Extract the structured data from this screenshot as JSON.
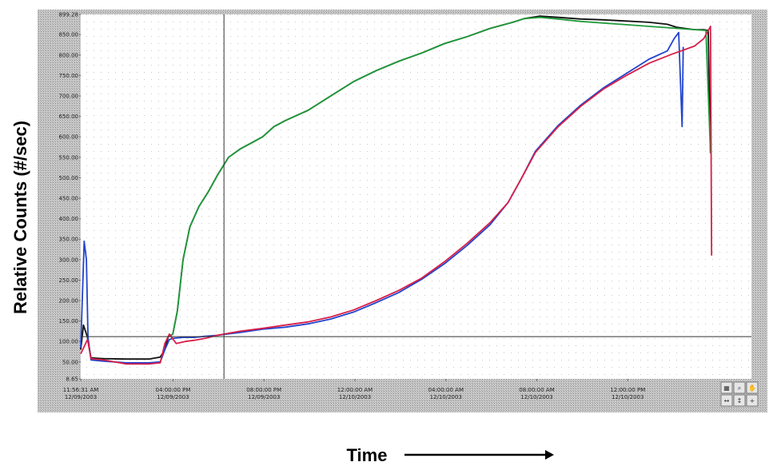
{
  "chart_data": {
    "type": "line",
    "ylabel": "Relative Counts (#/sec)",
    "xlabel": "Time",
    "y_axis": {
      "range": [
        8.65,
        899.28
      ],
      "ticks": [
        {
          "value": 8.65,
          "label": "8.65"
        },
        {
          "value": 50,
          "label": "50.00"
        },
        {
          "value": 100,
          "label": "100.00"
        },
        {
          "value": 150,
          "label": "150.00"
        },
        {
          "value": 200,
          "label": "200.00"
        },
        {
          "value": 250,
          "label": "250.00"
        },
        {
          "value": 300,
          "label": "300.00"
        },
        {
          "value": 350,
          "label": "350.00"
        },
        {
          "value": 400,
          "label": "400.00"
        },
        {
          "value": 450,
          "label": "450.00"
        },
        {
          "value": 500,
          "label": "500.00"
        },
        {
          "value": 550,
          "label": "550.00"
        },
        {
          "value": 600,
          "label": "600.00"
        },
        {
          "value": 650,
          "label": "650.00"
        },
        {
          "value": 700,
          "label": "700.00"
        },
        {
          "value": 750,
          "label": "750.00"
        },
        {
          "value": 800,
          "label": "800.00"
        },
        {
          "value": 850,
          "label": "850.00"
        },
        {
          "value": 899.28,
          "label": "899.28"
        }
      ]
    },
    "x_axis": {
      "unit": "hours since 11:56:31 AM 12/09/2003",
      "range": [
        0,
        29.5
      ],
      "ticks": [
        {
          "value": 0,
          "label": "11:56:31 AM",
          "sub": "12/09/2003"
        },
        {
          "value": 4.06,
          "label": "04:00:00 PM",
          "sub": "12/09/2003"
        },
        {
          "value": 8.06,
          "label": "08:00:00 PM",
          "sub": "12/09/2003"
        },
        {
          "value": 12.06,
          "label": "12:00:00 AM",
          "sub": "12/10/2003"
        },
        {
          "value": 16.06,
          "label": "04:00:00 AM",
          "sub": "12/10/2003"
        },
        {
          "value": 20.06,
          "label": "08:00:00 AM",
          "sub": "12/10/2003"
        },
        {
          "value": 24.06,
          "label": "12:00:00 PM",
          "sub": "12/10/2003"
        }
      ]
    },
    "cursor": {
      "x": 6.3,
      "y": 112
    },
    "grid": true,
    "series": [
      {
        "color": "#111111",
        "points": [
          [
            0,
            80
          ],
          [
            0.12,
            140
          ],
          [
            0.3,
            110
          ],
          [
            0.45,
            60
          ],
          [
            1,
            58
          ],
          [
            2,
            57
          ],
          [
            3,
            57
          ],
          [
            3.5,
            62
          ],
          [
            3.7,
            80
          ],
          [
            3.85,
            112
          ],
          [
            4.05,
            118
          ],
          [
            4.25,
            175
          ],
          [
            4.5,
            300
          ],
          [
            4.8,
            380
          ],
          [
            5.2,
            430
          ],
          [
            5.6,
            465
          ],
          [
            6,
            505
          ],
          [
            6.5,
            550
          ],
          [
            7,
            570
          ],
          [
            7.5,
            585
          ],
          [
            8,
            600
          ],
          [
            8.5,
            625
          ],
          [
            9,
            640
          ],
          [
            10,
            665
          ],
          [
            11,
            700
          ],
          [
            12,
            735
          ],
          [
            13,
            762
          ],
          [
            14,
            785
          ],
          [
            15,
            805
          ],
          [
            16,
            828
          ],
          [
            17,
            845
          ],
          [
            18,
            865
          ],
          [
            19,
            880
          ],
          [
            19.5,
            889
          ],
          [
            20.2,
            895
          ],
          [
            21,
            892
          ],
          [
            22,
            888
          ],
          [
            23,
            886
          ],
          [
            24,
            883
          ],
          [
            25,
            880
          ],
          [
            25.8,
            875
          ],
          [
            26.2,
            868
          ],
          [
            26.6,
            865
          ],
          [
            27,
            862
          ],
          [
            27.4,
            862
          ],
          [
            27.6,
            860
          ],
          [
            27.7,
            560
          ]
        ]
      },
      {
        "color": "#1f9a3a",
        "points": [
          [
            3.85,
            112
          ],
          [
            4.05,
            118
          ],
          [
            4.25,
            175
          ],
          [
            4.5,
            300
          ],
          [
            4.8,
            380
          ],
          [
            5.2,
            430
          ],
          [
            5.6,
            465
          ],
          [
            6,
            505
          ],
          [
            6.5,
            550
          ],
          [
            7,
            570
          ],
          [
            7.5,
            585
          ],
          [
            8,
            600
          ],
          [
            8.5,
            625
          ],
          [
            9,
            640
          ],
          [
            10,
            665
          ],
          [
            11,
            700
          ],
          [
            12,
            735
          ],
          [
            13,
            762
          ],
          [
            14,
            785
          ],
          [
            15,
            805
          ],
          [
            16,
            828
          ],
          [
            17,
            845
          ],
          [
            18,
            865
          ],
          [
            19,
            880
          ],
          [
            19.5,
            889
          ],
          [
            20.2,
            892
          ],
          [
            21,
            888
          ],
          [
            22,
            882
          ],
          [
            23,
            878
          ],
          [
            24,
            874
          ],
          [
            25,
            870
          ],
          [
            26,
            866
          ],
          [
            27,
            862
          ],
          [
            27.5,
            860
          ],
          [
            27.7,
            560
          ]
        ]
      },
      {
        "color": "#2244cc",
        "points": [
          [
            0,
            85
          ],
          [
            0.15,
            345
          ],
          [
            0.25,
            300
          ],
          [
            0.32,
            110
          ],
          [
            0.45,
            55
          ],
          [
            1,
            52
          ],
          [
            2,
            48
          ],
          [
            3,
            48
          ],
          [
            3.5,
            50
          ],
          [
            3.7,
            80
          ],
          [
            3.9,
            105
          ],
          [
            4.1,
            108
          ],
          [
            4.5,
            110
          ],
          [
            5,
            110
          ],
          [
            5.5,
            113
          ],
          [
            6,
            115
          ],
          [
            7,
            122
          ],
          [
            8,
            130
          ],
          [
            9,
            135
          ],
          [
            10,
            143
          ],
          [
            11,
            155
          ],
          [
            12,
            172
          ],
          [
            13,
            195
          ],
          [
            14,
            220
          ],
          [
            15,
            252
          ],
          [
            16,
            290
          ],
          [
            17,
            335
          ],
          [
            18,
            385
          ],
          [
            18.8,
            440
          ],
          [
            19.4,
            500
          ],
          [
            20,
            565
          ],
          [
            21,
            628
          ],
          [
            22,
            678
          ],
          [
            23,
            720
          ],
          [
            24,
            755
          ],
          [
            25,
            790
          ],
          [
            25.8,
            810
          ],
          [
            26.1,
            840
          ],
          [
            26.3,
            855
          ],
          [
            26.45,
            625
          ],
          [
            26.5,
            820
          ]
        ]
      },
      {
        "color": "#d81e48",
        "points": [
          [
            0,
            70
          ],
          [
            0.3,
            105
          ],
          [
            0.45,
            58
          ],
          [
            1,
            55
          ],
          [
            2,
            45
          ],
          [
            3,
            45
          ],
          [
            3.5,
            48
          ],
          [
            3.7,
            95
          ],
          [
            3.9,
            118
          ],
          [
            4.2,
            95
          ],
          [
            4.6,
            100
          ],
          [
            5,
            103
          ],
          [
            5.5,
            108
          ],
          [
            6,
            115
          ],
          [
            7,
            125
          ],
          [
            8,
            132
          ],
          [
            9,
            140
          ],
          [
            10,
            148
          ],
          [
            11,
            160
          ],
          [
            12,
            177
          ],
          [
            13,
            200
          ],
          [
            14,
            225
          ],
          [
            15,
            255
          ],
          [
            16,
            295
          ],
          [
            17,
            340
          ],
          [
            18,
            390
          ],
          [
            18.8,
            440
          ],
          [
            19.4,
            500
          ],
          [
            20,
            562
          ],
          [
            21,
            625
          ],
          [
            22,
            675
          ],
          [
            23,
            717
          ],
          [
            24,
            750
          ],
          [
            25,
            780
          ],
          [
            26,
            802
          ],
          [
            27,
            822
          ],
          [
            27.4,
            840
          ],
          [
            27.6,
            860
          ],
          [
            27.7,
            870
          ],
          [
            27.75,
            310
          ]
        ]
      }
    ]
  },
  "controls": {
    "buttons": [
      {
        "name": "zoom-fit-button",
        "icon": "fit-icon"
      },
      {
        "name": "zoom-in-button",
        "icon": "zoom-icon"
      },
      {
        "name": "pan-button",
        "icon": "pan-icon"
      },
      {
        "name": "zoom-x-button",
        "icon": "zoom-x-icon"
      },
      {
        "name": "zoom-y-button",
        "icon": "zoom-y-icon"
      },
      {
        "name": "cursor-button",
        "icon": "cursor-icon"
      }
    ]
  }
}
